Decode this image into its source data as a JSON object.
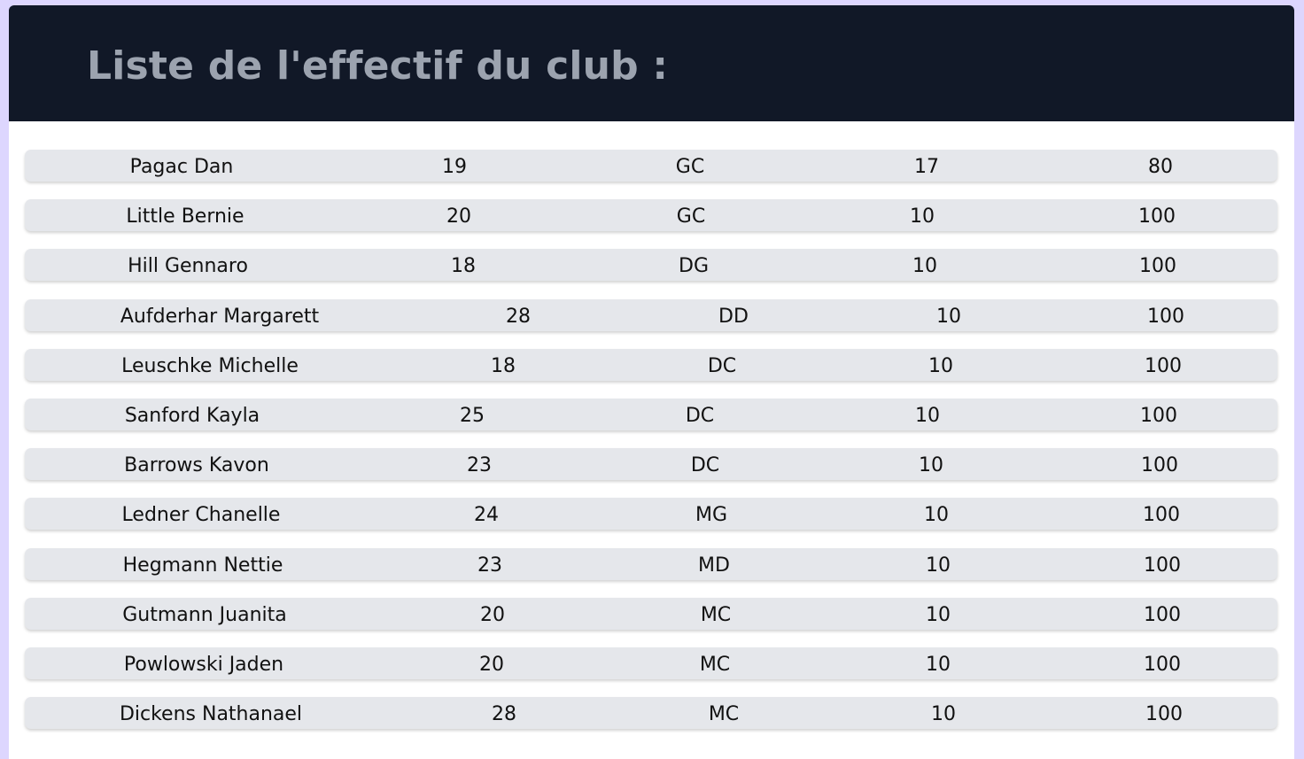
{
  "header": {
    "title": "Liste de l'effectif du club :"
  },
  "players": [
    {
      "name": "Pagac Dan",
      "age": "19",
      "position": "GC",
      "number": "17",
      "rating": "80"
    },
    {
      "name": "Little Bernie",
      "age": "20",
      "position": "GC",
      "number": "10",
      "rating": "100"
    },
    {
      "name": "Hill Gennaro",
      "age": "18",
      "position": "DG",
      "number": "10",
      "rating": "100"
    },
    {
      "name": "Aufderhar Margarett",
      "age": "28",
      "position": "DD",
      "number": "10",
      "rating": "100"
    },
    {
      "name": "Leuschke Michelle",
      "age": "18",
      "position": "DC",
      "number": "10",
      "rating": "100"
    },
    {
      "name": "Sanford Kayla",
      "age": "25",
      "position": "DC",
      "number": "10",
      "rating": "100"
    },
    {
      "name": "Barrows Kavon",
      "age": "23",
      "position": "DC",
      "number": "10",
      "rating": "100"
    },
    {
      "name": "Ledner Chanelle",
      "age": "24",
      "position": "MG",
      "number": "10",
      "rating": "100"
    },
    {
      "name": "Hegmann Nettie",
      "age": "23",
      "position": "MD",
      "number": "10",
      "rating": "100"
    },
    {
      "name": "Gutmann Juanita",
      "age": "20",
      "position": "MC",
      "number": "10",
      "rating": "100"
    },
    {
      "name": "Powlowski Jaden",
      "age": "20",
      "position": "MC",
      "number": "10",
      "rating": "100"
    },
    {
      "name": "Dickens Nathanael",
      "age": "28",
      "position": "MC",
      "number": "10",
      "rating": "100"
    }
  ],
  "colors": {
    "background": "#ddd6fe",
    "header": "#111827",
    "title": "#9ca3af",
    "row": "#e5e7eb"
  }
}
